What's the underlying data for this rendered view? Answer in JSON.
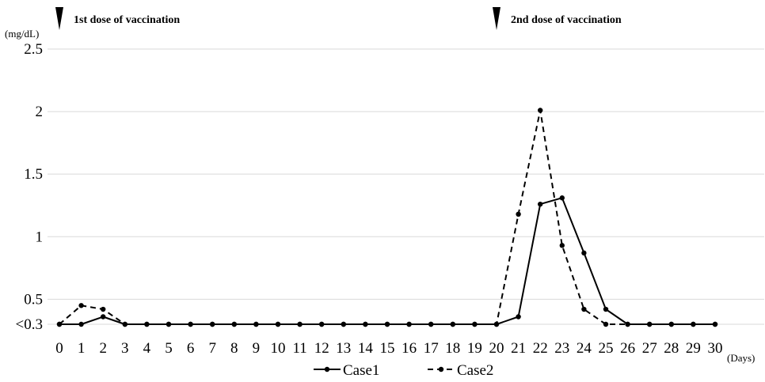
{
  "chart_data": {
    "type": "line",
    "x": [
      0,
      1,
      2,
      3,
      4,
      5,
      6,
      7,
      8,
      9,
      10,
      11,
      12,
      13,
      14,
      15,
      16,
      17,
      18,
      19,
      20,
      21,
      22,
      23,
      24,
      25,
      26,
      27,
      28,
      29,
      30
    ],
    "series": [
      {
        "name": "Case1",
        "style": "solid",
        "values": [
          0.3,
          0.3,
          0.36,
          0.3,
          0.3,
          0.3,
          0.3,
          0.3,
          0.3,
          0.3,
          0.3,
          0.3,
          0.3,
          0.3,
          0.3,
          0.3,
          0.3,
          0.3,
          0.3,
          0.3,
          0.3,
          0.36,
          1.26,
          1.31,
          0.87,
          0.42,
          0.3,
          0.3,
          0.3,
          0.3,
          0.3
        ]
      },
      {
        "name": "Case2",
        "style": "dashed",
        "values": [
          0.3,
          0.45,
          0.42,
          0.3,
          0.3,
          0.3,
          0.3,
          0.3,
          0.3,
          0.3,
          0.3,
          0.3,
          0.3,
          0.3,
          0.3,
          0.3,
          0.3,
          0.3,
          0.3,
          0.3,
          0.3,
          1.18,
          2.01,
          0.93,
          0.42,
          0.3,
          0.3,
          0.3,
          0.3,
          0.3,
          0.3
        ]
      }
    ],
    "y_ticks": [
      {
        "value": 0.3,
        "label": "<0.3"
      },
      {
        "value": 0.5,
        "label": "0.5"
      },
      {
        "value": 1,
        "label": "1"
      },
      {
        "value": 1.5,
        "label": "1.5"
      },
      {
        "value": 2,
        "label": "2"
      },
      {
        "value": 2.5,
        "label": "2.5"
      }
    ],
    "x_ticks": [
      "0",
      "1",
      "2",
      "3",
      "4",
      "5",
      "6",
      "7",
      "8",
      "9",
      "10",
      "11",
      "12",
      "13",
      "14",
      "15",
      "16",
      "17",
      "18",
      "19",
      "20",
      "21",
      "22",
      "23",
      "24",
      "25",
      "26",
      "27",
      "28",
      "29",
      "30"
    ],
    "ylim": [
      0.3,
      2.5
    ],
    "xlim": [
      0,
      30
    ],
    "ylabel": "(mg/dL)",
    "xlabel": "(Days)",
    "grid": true,
    "legend_position": "bottom",
    "annotations": [
      {
        "x": 0,
        "text": "1st dose of vaccination",
        "marker": "triangle-down"
      },
      {
        "x": 20,
        "text": "2nd dose of vaccination",
        "marker": "triangle-down"
      }
    ],
    "colors": {
      "line": "#000000",
      "grid": "#d9d9d9"
    }
  }
}
